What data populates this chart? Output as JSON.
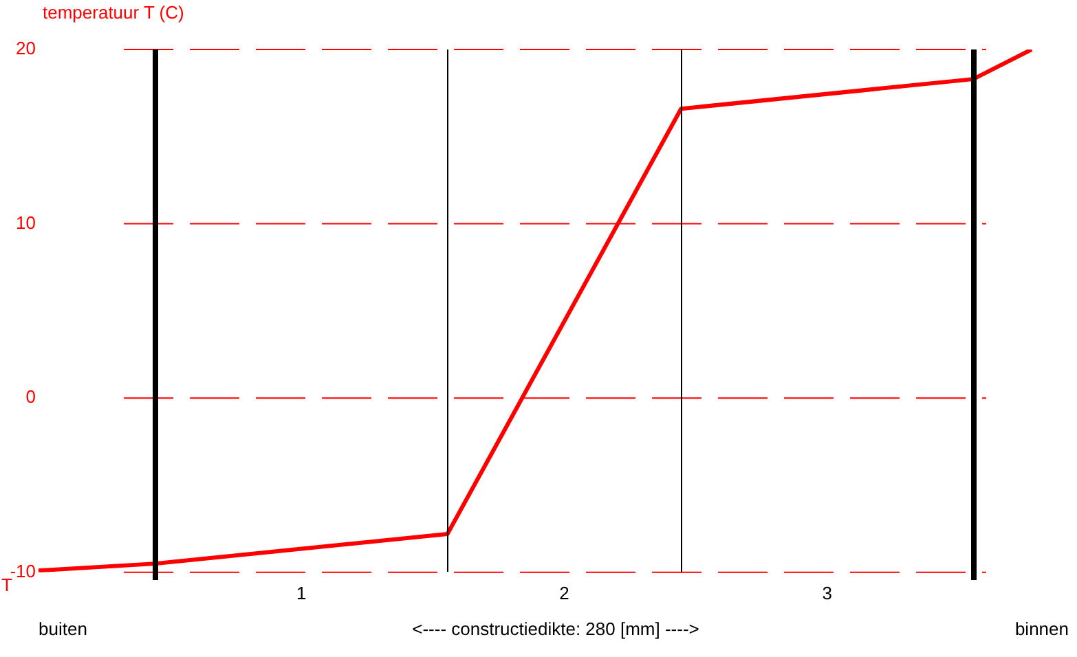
{
  "chart_data": {
    "type": "line",
    "ylabel": "temperatuur T (C)",
    "xlabel": "<---- constructiedikte: 280 [mm] ---->",
    "categories": [
      null,
      null,
      null,
      null,
      null,
      null,
      null,
      null,
      null,
      "1",
      null,
      null,
      null,
      null,
      null,
      null,
      null,
      null,
      "2",
      null,
      null,
      null,
      null,
      null,
      null,
      null,
      null,
      "3",
      null,
      null,
      null,
      null,
      null,
      null,
      null
    ],
    "series": [
      {
        "color": "#ff0000",
        "values": [
          -9.9,
          null,
          null,
          null,
          -9.5,
          null,
          null,
          null,
          null,
          null,
          null,
          null,
          null,
          null,
          -7.8,
          null,
          null,
          null,
          null,
          null,
          null,
          null,
          16.6,
          null,
          null,
          null,
          null,
          null,
          null,
          null,
          null,
          null,
          18.3,
          null,
          20
        ]
      }
    ],
    "ylim": [
      -10,
      20
    ],
    "yticks": [
      -10,
      0,
      10,
      20
    ],
    "grid": "y",
    "line_style": "solid",
    "marker": "none",
    "legend": false,
    "annotations": [
      "T",
      "buiten",
      "binnen"
    ]
  }
}
